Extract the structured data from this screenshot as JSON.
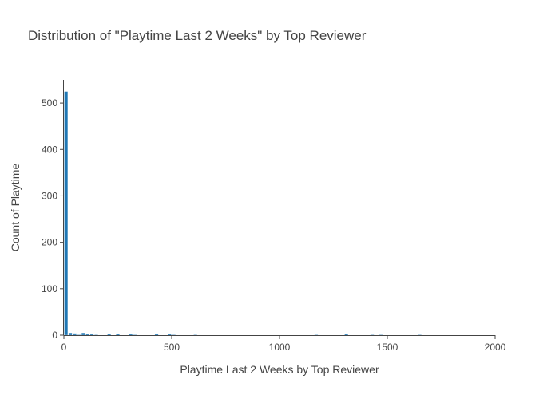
{
  "chart_data": {
    "type": "bar",
    "subtype": "histogram",
    "title": "Distribution of \"Playtime Last 2 Weeks\" by Top Reviewer",
    "xlabel": "Playtime Last 2 Weeks by Top Reviewer",
    "ylabel": "Count of Playtime",
    "xlim": [
      0,
      2000
    ],
    "ylim": [
      0,
      550
    ],
    "x_ticks": [
      0,
      500,
      1000,
      1500,
      2000
    ],
    "y_ticks": [
      0,
      100,
      200,
      300,
      400,
      500
    ],
    "bin_width": 20,
    "grid": false,
    "bar_color": "#1f77b4",
    "bins": [
      {
        "x0": 0,
        "x1": 20,
        "count": 525
      },
      {
        "x0": 20,
        "x1": 40,
        "count": 5
      },
      {
        "x0": 40,
        "x1": 60,
        "count": 4
      },
      {
        "x0": 60,
        "x1": 80,
        "count": 1
      },
      {
        "x0": 80,
        "x1": 100,
        "count": 5
      },
      {
        "x0": 100,
        "x1": 120,
        "count": 2
      },
      {
        "x0": 120,
        "x1": 140,
        "count": 2
      },
      {
        "x0": 140,
        "x1": 160,
        "count": 1
      },
      {
        "x0": 200,
        "x1": 220,
        "count": 2
      },
      {
        "x0": 240,
        "x1": 260,
        "count": 2
      },
      {
        "x0": 300,
        "x1": 320,
        "count": 2
      },
      {
        "x0": 320,
        "x1": 340,
        "count": 1
      },
      {
        "x0": 420,
        "x1": 440,
        "count": 2
      },
      {
        "x0": 480,
        "x1": 500,
        "count": 2
      },
      {
        "x0": 500,
        "x1": 520,
        "count": 1
      },
      {
        "x0": 600,
        "x1": 620,
        "count": 1
      },
      {
        "x0": 1160,
        "x1": 1180,
        "count": 1
      },
      {
        "x0": 1300,
        "x1": 1320,
        "count": 2
      },
      {
        "x0": 1420,
        "x1": 1440,
        "count": 1
      },
      {
        "x0": 1460,
        "x1": 1480,
        "count": 1
      },
      {
        "x0": 1640,
        "x1": 1660,
        "count": 1
      }
    ]
  }
}
